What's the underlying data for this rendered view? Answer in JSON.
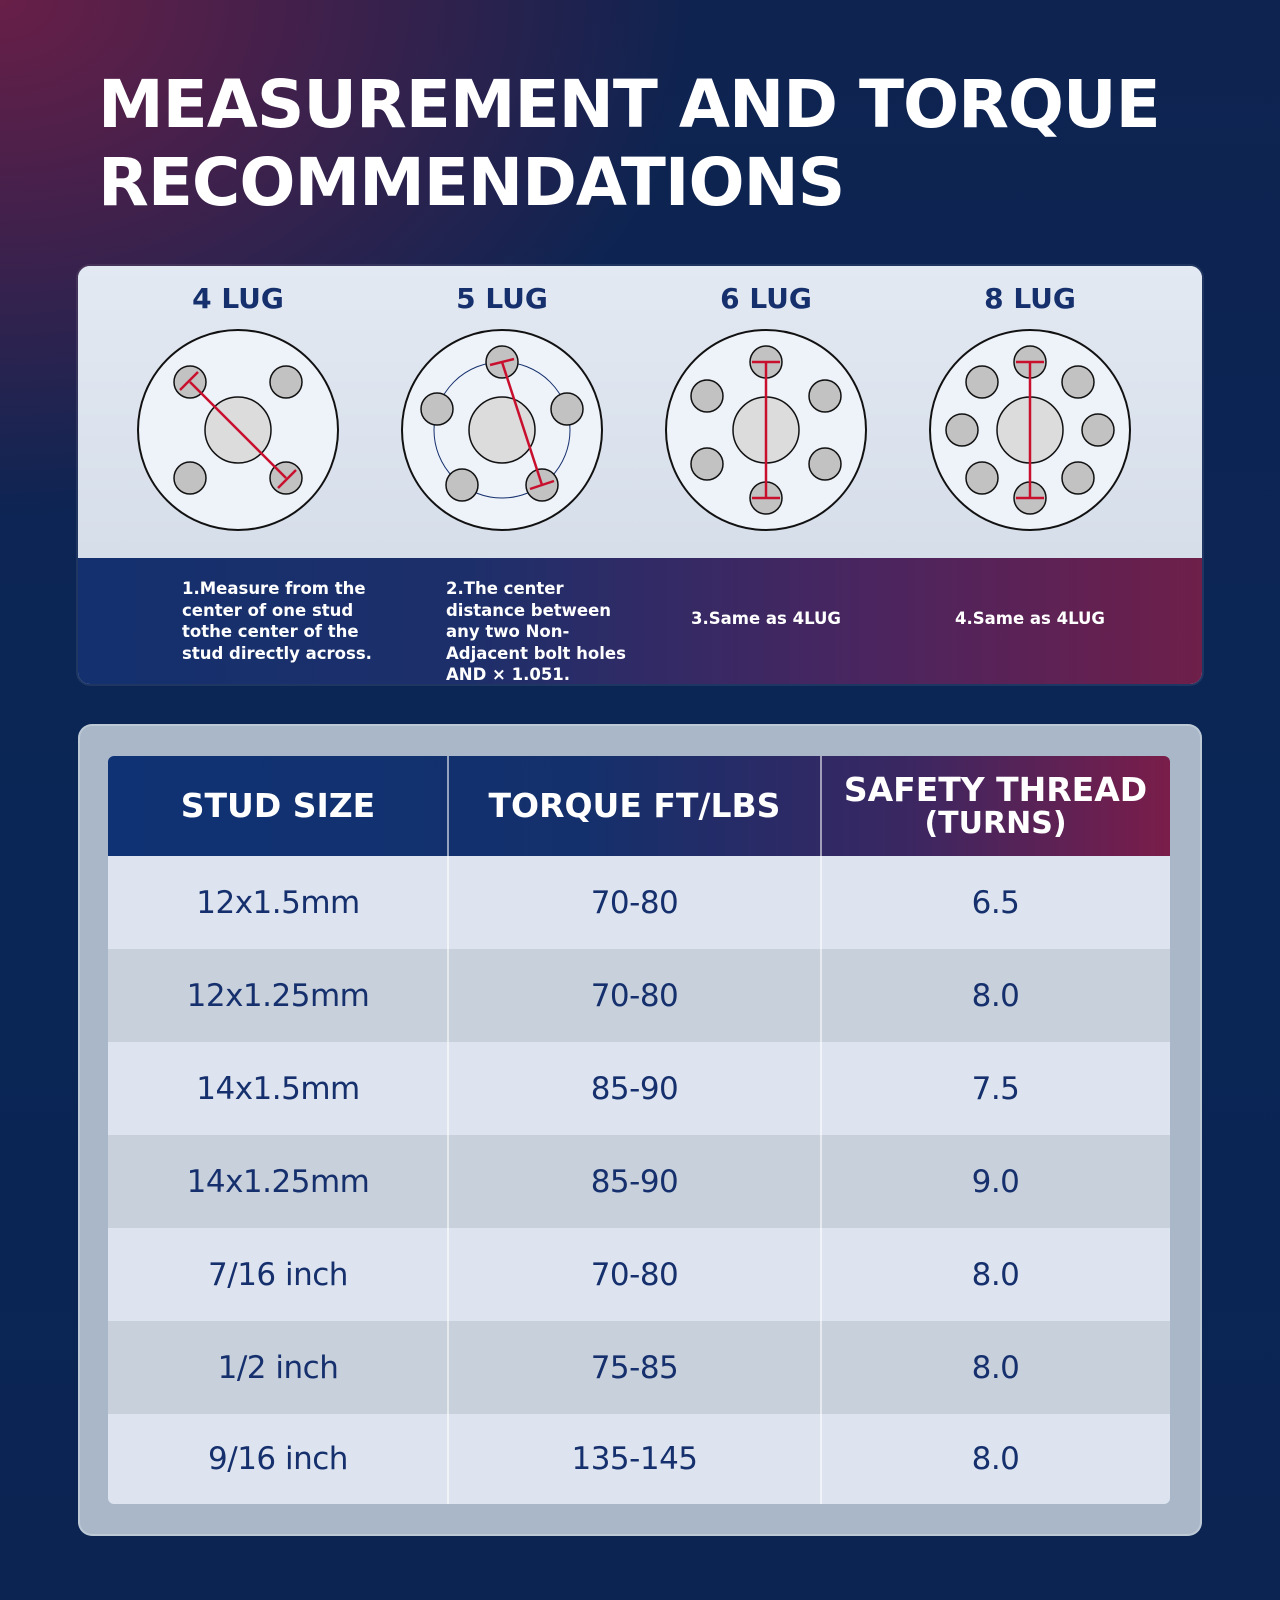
{
  "title": {
    "line1": "MEASUREMENT AND TORQUE",
    "line2": "RECOMMENDATIONS"
  },
  "lugs": [
    {
      "label": "4 LUG",
      "note": "1.Measure from the center of one stud tothe center of the stud directly across."
    },
    {
      "label": "5 LUG",
      "note": "2.The center distance between any two Non-Adjacent bolt holes AND × 1.051."
    },
    {
      "label": "6 LUG",
      "note": "3.Same as 4LUG"
    },
    {
      "label": "8 LUG",
      "note": "4.Same as 4LUG"
    }
  ],
  "table": {
    "headers": {
      "stud_size": "STUD SIZE",
      "torque": "TORQUE FT/LBS",
      "safety_line1": "SAFETY THREAD",
      "safety_line2": "(TURNS)"
    },
    "rows": [
      {
        "stud": "12x1.5mm",
        "torque": "70-80",
        "turns": "6.5"
      },
      {
        "stud": "12x1.25mm",
        "torque": "70-80",
        "turns": "8.0"
      },
      {
        "stud": "14x1.5mm",
        "torque": "85-90",
        "turns": "7.5"
      },
      {
        "stud": "14x1.25mm",
        "torque": "85-90",
        "turns": "9.0"
      },
      {
        "stud": "7/16 inch",
        "torque": "70-80",
        "turns": "8.0"
      },
      {
        "stud": "1/2 inch",
        "torque": "75-85",
        "turns": "8.0"
      },
      {
        "stud": "9/16 inch",
        "torque": "135-145",
        "turns": "8.0"
      }
    ]
  },
  "colors": {
    "navy": "#15306d",
    "accent_red": "#c8102e",
    "panel_light": "#dde4ef",
    "panel_alt": "#c8d0dc"
  }
}
